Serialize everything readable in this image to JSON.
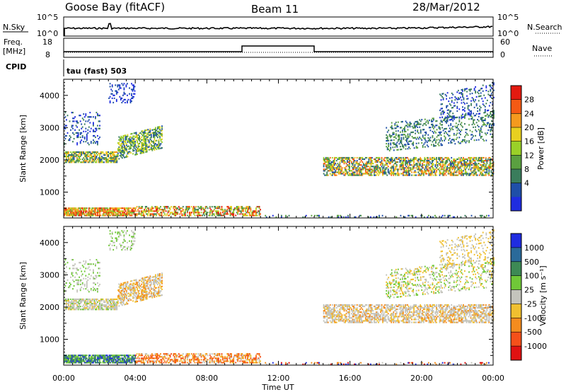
{
  "header": {
    "station": "Goose Bay (fitACF)",
    "beam": "Beam 11",
    "date": "28/Mar/2012"
  },
  "panels": {
    "nsky_label": "N.Sky",
    "nsearch_label": "N.Search",
    "freq_label_1": "Freq.",
    "freq_label_2": "[MHz]",
    "nave_label": "Nave",
    "cpid_label": "CPID",
    "cpid_value": "tau (fast) 503",
    "nsky_ticks": [
      "10^5",
      "10^0"
    ],
    "nsearch_ticks": [
      "10^5",
      "10^0"
    ],
    "freq_ticks": [
      "18",
      "8"
    ],
    "nave_ticks": [
      "60",
      "0"
    ]
  },
  "colors": {
    "power": [
      "#1f2ce0",
      "#1f4fa8",
      "#3a7d5c",
      "#5aa040",
      "#9ad028",
      "#e8d020",
      "#f59a1e",
      "#f55a14",
      "#e31a10"
    ],
    "velocity": [
      "#1f2ce0",
      "#2a6a9a",
      "#3d8a55",
      "#70c838",
      "#c4c4bc",
      "#f0c030",
      "#f58c1e",
      "#f5501a",
      "#e01212"
    ]
  },
  "chart_data": [
    {
      "type": "heatmap",
      "title": "Power",
      "xlabel": "",
      "ylabel": "Slant Range [km]",
      "x_ticks": [
        "00:00",
        "04:00",
        "08:00",
        "12:00",
        "16:00",
        "20:00",
        "00:00"
      ],
      "xlim": [
        0,
        24
      ],
      "ylim": [
        200,
        4500
      ],
      "y_ticks": [
        1000,
        2000,
        3000,
        4000
      ],
      "colorbar_label": "Power [dB]",
      "colorbar_ticks": [
        "4",
        "8",
        "12",
        "16",
        "20",
        "24",
        "28"
      ]
    },
    {
      "type": "heatmap",
      "title": "Velocity",
      "xlabel": "Time UT",
      "ylabel": "Slant Range [km]",
      "x_ticks": [
        "00:00",
        "04:00",
        "08:00",
        "12:00",
        "16:00",
        "20:00",
        "00:00"
      ],
      "xlim": [
        0,
        24
      ],
      "ylim": [
        200,
        4500
      ],
      "y_ticks": [
        1000,
        2000,
        3000,
        4000
      ],
      "colorbar_label": "Velocity [m s⁻¹]",
      "colorbar_ticks": [
        "1000",
        "500",
        "100",
        "25",
        "-25",
        "-100",
        "-500",
        "-1000"
      ]
    }
  ]
}
